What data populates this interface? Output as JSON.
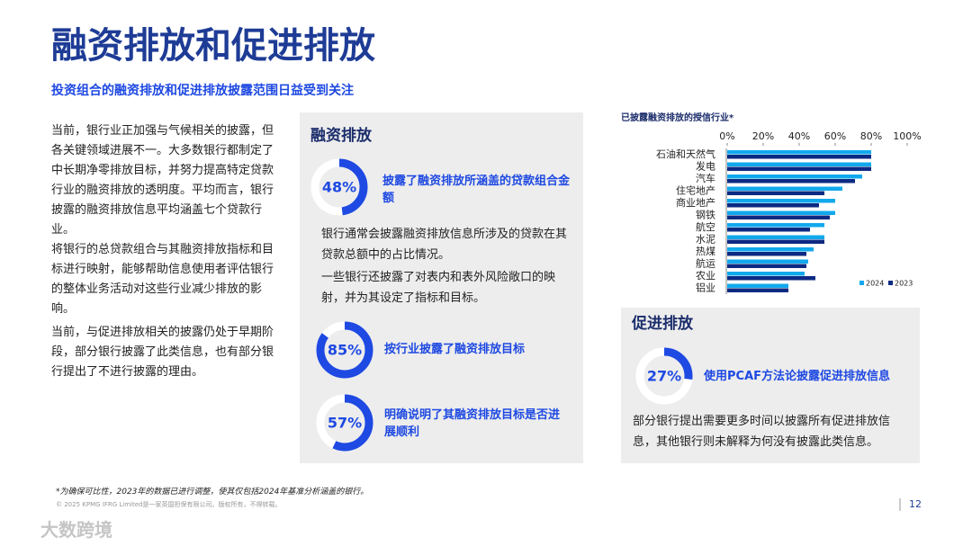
{
  "header": {
    "title": "融资排放和促进排放",
    "subtitle": "投资组合的融资排放和促进排放披露范围日益受到关注"
  },
  "intro": [
    "当前，银行业正加强与气候相关的披露，但各关键领域进展不一。大多数银行都制定了中长期净零排放目标，并努力提高特定贷款行业的融资排放的透明度。平均而言，银行披露的融资排放信息平均涵盖七个贷款行业。",
    "将银行的总贷款组合与其融资排放指标和目标进行映射，能够帮助信息使用者评估银行的整体业务活动对这些行业减少排放的影响。",
    "当前，与促进排放相关的披露仍处于早期阶段，部分银行披露了此类信息，也有部分银行提出了不进行披露的理由。"
  ],
  "financed": {
    "title": "融资排放",
    "stats": [
      {
        "value": 48,
        "value_label": "48%",
        "text": "披露了融资排放所涵盖的贷款组合金额"
      },
      {
        "value": 85,
        "value_label": "85%",
        "text": "按行业披露了融资排放目标"
      },
      {
        "value": 57,
        "value_label": "57%",
        "text": "明确说明了其融资排放目标是否进展顺利"
      }
    ],
    "notes": [
      "银行通常会披露融资排放信息所涉及的贷款在其贷款总额中的占比情况。",
      "一些银行还披露了对表内和表外风险敞口的映射，并为其设定了指标和目标。"
    ]
  },
  "facilitated": {
    "title": "促进排放",
    "stats": [
      {
        "value": 27,
        "value_label": "27%",
        "text": "使用PCAF方法论披露促进排放信息"
      }
    ],
    "notes": [
      "部分银行提出需要更多时间以披露所有促进排放信息，其他银行则未解释为何没有披露此类信息。"
    ]
  },
  "chart_data": {
    "type": "bar",
    "orientation": "horizontal",
    "title": "已披露融资排放的授信行业*",
    "categories": [
      "石油和天然气",
      "发电",
      "汽车",
      "住宅地产",
      "商业地产",
      "钢铁",
      "航空",
      "水泥",
      "热煤",
      "航运",
      "农业",
      "铝业"
    ],
    "series": [
      {
        "name": "2024",
        "color": "#12a9ec",
        "values": [
          80,
          80,
          75,
          64,
          60,
          60,
          54,
          54,
          48,
          45,
          43,
          34
        ]
      },
      {
        "name": "2023",
        "color": "#0c2a82",
        "values": [
          80,
          80,
          71,
          54,
          51,
          57,
          46,
          54,
          44,
          44,
          49,
          34
        ]
      }
    ],
    "xlim": [
      0,
      100
    ],
    "xticks": [
      {
        "value": 0,
        "label": "0%"
      },
      {
        "value": 20,
        "label": "20%"
      },
      {
        "value": 40,
        "label": "40%"
      },
      {
        "value": 60,
        "label": "60%"
      },
      {
        "value": 80,
        "label": "80%"
      },
      {
        "value": 100,
        "label": "100%"
      }
    ],
    "legend": "bottom-right"
  },
  "footer": {
    "note": "*为确保可比性，2023年的数据已进行调整，使其仅包括2024年基准分析涵盖的银行。",
    "copyright": "© 2025 KPMG IFRG Limited是一家英国担保有限公司。版权所有，不得转载。",
    "page": "12",
    "watermark": "大数跨境"
  }
}
